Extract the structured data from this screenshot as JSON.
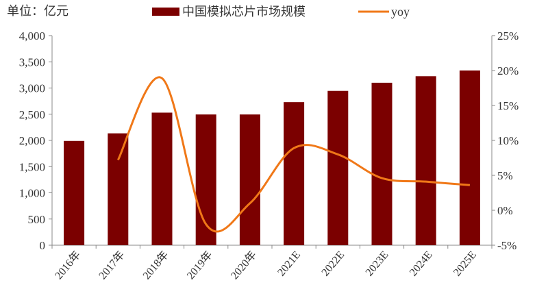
{
  "chart_data": {
    "type": "bar+line",
    "unit_label": "单位：亿元",
    "categories": [
      "2016年",
      "2017年",
      "2018年",
      "2019年",
      "2020年",
      "2021E",
      "2022E",
      "2023E",
      "2024E",
      "2025E"
    ],
    "series": [
      {
        "name": "中国模拟芯片市场规模",
        "type": "bar",
        "axis": "left",
        "color": "#7b0000",
        "values": [
          1990,
          2135,
          2530,
          2495,
          2495,
          2730,
          2945,
          3100,
          3225,
          3335
        ]
      },
      {
        "name": "yoy",
        "type": "line",
        "axis": "right",
        "color": "#f07818",
        "values": [
          null,
          7.2,
          18.9,
          -2.0,
          1.0,
          8.9,
          8.0,
          4.6,
          4.1,
          3.6
        ]
      }
    ],
    "left_axis": {
      "ylim": [
        0,
        4000
      ],
      "ticks": [
        "0",
        "500",
        "1,000",
        "1,500",
        "2,000",
        "2,500",
        "3,000",
        "3,500",
        "4,000"
      ]
    },
    "right_axis": {
      "ylim": [
        -5,
        25
      ],
      "ticks": [
        "-5%",
        "0%",
        "5%",
        "10%",
        "15%",
        "20%",
        "25%"
      ]
    },
    "legend_placement": "top",
    "grid": false
  }
}
